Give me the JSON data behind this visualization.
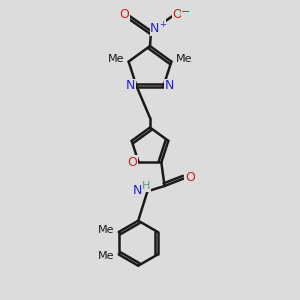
{
  "background_color": "#dcdcdc",
  "dark": "#1a1a1a",
  "blue": "#2222cc",
  "red": "#cc2222",
  "teal": "#4a9a9a",
  "lw": 1.8,
  "xlim": [
    0,
    10
  ],
  "ylim": [
    0,
    14
  ]
}
